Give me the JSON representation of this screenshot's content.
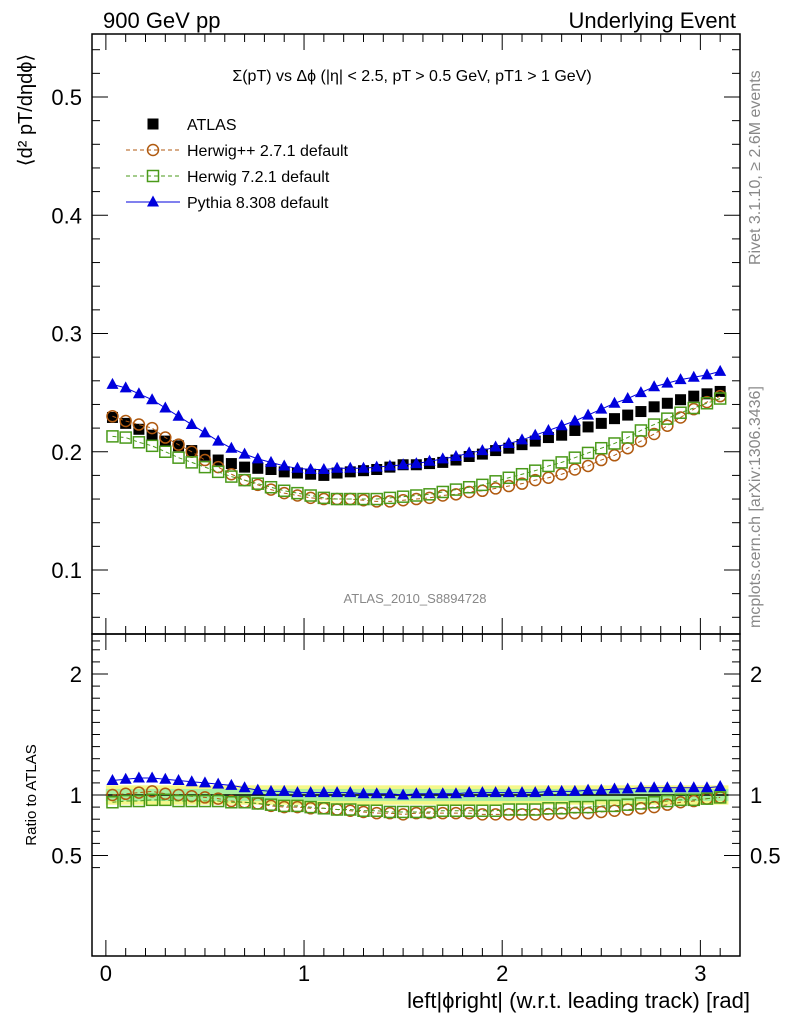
{
  "header": {
    "left": "900 GeV pp",
    "right": "Underlying Event"
  },
  "side": {
    "rivet": "Rivet 3.1.10, ≥ 2.6M events",
    "mcplots": "mcplots.cern.ch [arXiv:1306.3436]"
  },
  "plot_title": "Σ(pT) vs Δϕ (|η| < 2.5, pT > 0.5 GeV, pT1 > 1 GeV)",
  "analysis_id": "ATLAS_2010_S8894728",
  "ylabel_main": "⟨d² pT/dηdϕ⟩",
  "ylabel_ratio": "Ratio to ATLAS",
  "xlabel": "left|ϕright| (w.r.t. leading track) [rad]",
  "legend": [
    {
      "label": "ATLAS",
      "color": "#000000",
      "marker": "filled-square"
    },
    {
      "label": "Herwig++ 2.7.1 default",
      "color": "#b05a10",
      "marker": "open-circle"
    },
    {
      "label": "Herwig 7.2.1 default",
      "color": "#4a9a1a",
      "marker": "open-square"
    },
    {
      "label": "Pythia 8.308 default",
      "color": "#0000dd",
      "marker": "filled-triangle"
    }
  ],
  "chart_data": [
    {
      "type": "scatter",
      "panel": "main",
      "xlim": [
        -0.07,
        3.2
      ],
      "ylim": [
        0.04,
        0.55
      ],
      "x_ticks": [
        "0",
        "1",
        "2",
        "3"
      ],
      "y_ticks": [
        "0.1",
        "0.2",
        "0.3",
        "0.4",
        "0.5"
      ],
      "x": [
        0.0333,
        0.1,
        0.1667,
        0.2333,
        0.3,
        0.3667,
        0.4333,
        0.5,
        0.5667,
        0.6333,
        0.7,
        0.7667,
        0.8333,
        0.9,
        0.9667,
        1.0333,
        1.1,
        1.1667,
        1.2333,
        1.3,
        1.3667,
        1.4333,
        1.5,
        1.5667,
        1.6333,
        1.7,
        1.7667,
        1.8333,
        1.9,
        1.9667,
        2.0333,
        2.1,
        2.1667,
        2.2333,
        2.3,
        2.3667,
        2.4333,
        2.5,
        2.5667,
        2.6333,
        2.7,
        2.7667,
        2.8333,
        2.9,
        2.9667,
        3.0333,
        3.1
      ],
      "series": [
        {
          "name": "ATLAS",
          "values": [
            0.229,
            0.224,
            0.219,
            0.214,
            0.209,
            0.205,
            0.201,
            0.197,
            0.193,
            0.19,
            0.187,
            0.186,
            0.185,
            0.183,
            0.182,
            0.181,
            0.18,
            0.182,
            0.183,
            0.184,
            0.185,
            0.187,
            0.189,
            0.189,
            0.19,
            0.191,
            0.193,
            0.196,
            0.198,
            0.201,
            0.203,
            0.206,
            0.209,
            0.212,
            0.214,
            0.218,
            0.221,
            0.224,
            0.228,
            0.231,
            0.234,
            0.238,
            0.241,
            0.244,
            0.247,
            0.249,
            0.251
          ]
        },
        {
          "name": "Herwig++ 2.7.1 default",
          "values": [
            0.23,
            0.226,
            0.223,
            0.22,
            0.212,
            0.206,
            0.2,
            0.193,
            0.187,
            0.181,
            0.176,
            0.172,
            0.168,
            0.165,
            0.163,
            0.161,
            0.16,
            0.16,
            0.16,
            0.159,
            0.158,
            0.158,
            0.159,
            0.16,
            0.161,
            0.163,
            0.164,
            0.166,
            0.167,
            0.169,
            0.171,
            0.173,
            0.176,
            0.178,
            0.181,
            0.185,
            0.188,
            0.193,
            0.197,
            0.203,
            0.209,
            0.215,
            0.222,
            0.229,
            0.236,
            0.242,
            0.247
          ]
        },
        {
          "name": "Herwig 7.2.1 default",
          "values": [
            0.213,
            0.212,
            0.208,
            0.205,
            0.2,
            0.195,
            0.191,
            0.187,
            0.183,
            0.179,
            0.176,
            0.173,
            0.17,
            0.167,
            0.165,
            0.163,
            0.161,
            0.16,
            0.16,
            0.16,
            0.16,
            0.161,
            0.162,
            0.163,
            0.164,
            0.166,
            0.168,
            0.17,
            0.172,
            0.175,
            0.178,
            0.181,
            0.184,
            0.188,
            0.191,
            0.195,
            0.199,
            0.203,
            0.207,
            0.212,
            0.218,
            0.223,
            0.228,
            0.233,
            0.237,
            0.241,
            0.245
          ]
        },
        {
          "name": "Pythia 8.308 default",
          "values": [
            0.257,
            0.254,
            0.249,
            0.244,
            0.237,
            0.23,
            0.223,
            0.216,
            0.209,
            0.203,
            0.198,
            0.194,
            0.191,
            0.188,
            0.186,
            0.185,
            0.185,
            0.186,
            0.186,
            0.186,
            0.187,
            0.188,
            0.189,
            0.19,
            0.192,
            0.194,
            0.196,
            0.199,
            0.201,
            0.204,
            0.207,
            0.21,
            0.214,
            0.218,
            0.222,
            0.226,
            0.231,
            0.236,
            0.241,
            0.245,
            0.25,
            0.255,
            0.258,
            0.261,
            0.263,
            0.265,
            0.268
          ]
        }
      ]
    },
    {
      "type": "scatter",
      "panel": "ratio",
      "xlim": [
        -0.07,
        3.2
      ],
      "ylim": [
        0.33,
        2.3
      ],
      "x_ticks": [
        "0",
        "1",
        "2",
        "3"
      ],
      "y_ticks": [
        "0.5",
        "1",
        "2"
      ],
      "x": [
        0.0333,
        0.1,
        0.1667,
        0.2333,
        0.3,
        0.3667,
        0.4333,
        0.5,
        0.5667,
        0.6333,
        0.7,
        0.7667,
        0.8333,
        0.9,
        0.9667,
        1.0333,
        1.1,
        1.1667,
        1.2333,
        1.3,
        1.3667,
        1.4333,
        1.5,
        1.5667,
        1.6333,
        1.7,
        1.7667,
        1.8333,
        1.9,
        1.9667,
        2.0333,
        2.1,
        2.1667,
        2.2333,
        2.3,
        2.3667,
        2.4333,
        2.5,
        2.5667,
        2.6333,
        2.7,
        2.7667,
        2.8333,
        2.9,
        2.9667,
        3.0333,
        3.1
      ],
      "band_inner": [
        0.95,
        1.05
      ],
      "band_outer": [
        0.92,
        1.08
      ],
      "series": [
        {
          "name": "Herwig++ 2.7.1 default",
          "values": [
            1.0,
            1.01,
            1.02,
            1.03,
            1.01,
            1.0,
            0.99,
            0.98,
            0.97,
            0.95,
            0.94,
            0.93,
            0.91,
            0.9,
            0.9,
            0.89,
            0.89,
            0.88,
            0.87,
            0.86,
            0.85,
            0.85,
            0.84,
            0.85,
            0.85,
            0.85,
            0.85,
            0.85,
            0.84,
            0.84,
            0.84,
            0.84,
            0.84,
            0.84,
            0.85,
            0.85,
            0.85,
            0.86,
            0.87,
            0.88,
            0.89,
            0.9,
            0.92,
            0.94,
            0.95,
            0.97,
            0.98
          ]
        },
        {
          "name": "Herwig 7.2.1 default",
          "values": [
            0.94,
            0.95,
            0.95,
            0.96,
            0.96,
            0.95,
            0.95,
            0.95,
            0.95,
            0.94,
            0.94,
            0.93,
            0.92,
            0.91,
            0.91,
            0.9,
            0.89,
            0.88,
            0.88,
            0.87,
            0.87,
            0.86,
            0.86,
            0.86,
            0.86,
            0.87,
            0.87,
            0.87,
            0.87,
            0.87,
            0.88,
            0.88,
            0.88,
            0.89,
            0.89,
            0.9,
            0.9,
            0.91,
            0.91,
            0.92,
            0.93,
            0.94,
            0.95,
            0.96,
            0.96,
            0.97,
            0.98
          ]
        },
        {
          "name": "Pythia 8.308 default",
          "values": [
            1.12,
            1.13,
            1.14,
            1.14,
            1.13,
            1.12,
            1.11,
            1.1,
            1.09,
            1.08,
            1.06,
            1.04,
            1.03,
            1.03,
            1.02,
            1.02,
            1.02,
            1.02,
            1.02,
            1.01,
            1.01,
            1.01,
            1.0,
            1.01,
            1.01,
            1.01,
            1.01,
            1.02,
            1.02,
            1.02,
            1.02,
            1.02,
            1.02,
            1.03,
            1.03,
            1.03,
            1.04,
            1.04,
            1.05,
            1.05,
            1.06,
            1.06,
            1.06,
            1.06,
            1.06,
            1.06,
            1.07
          ]
        }
      ]
    }
  ]
}
